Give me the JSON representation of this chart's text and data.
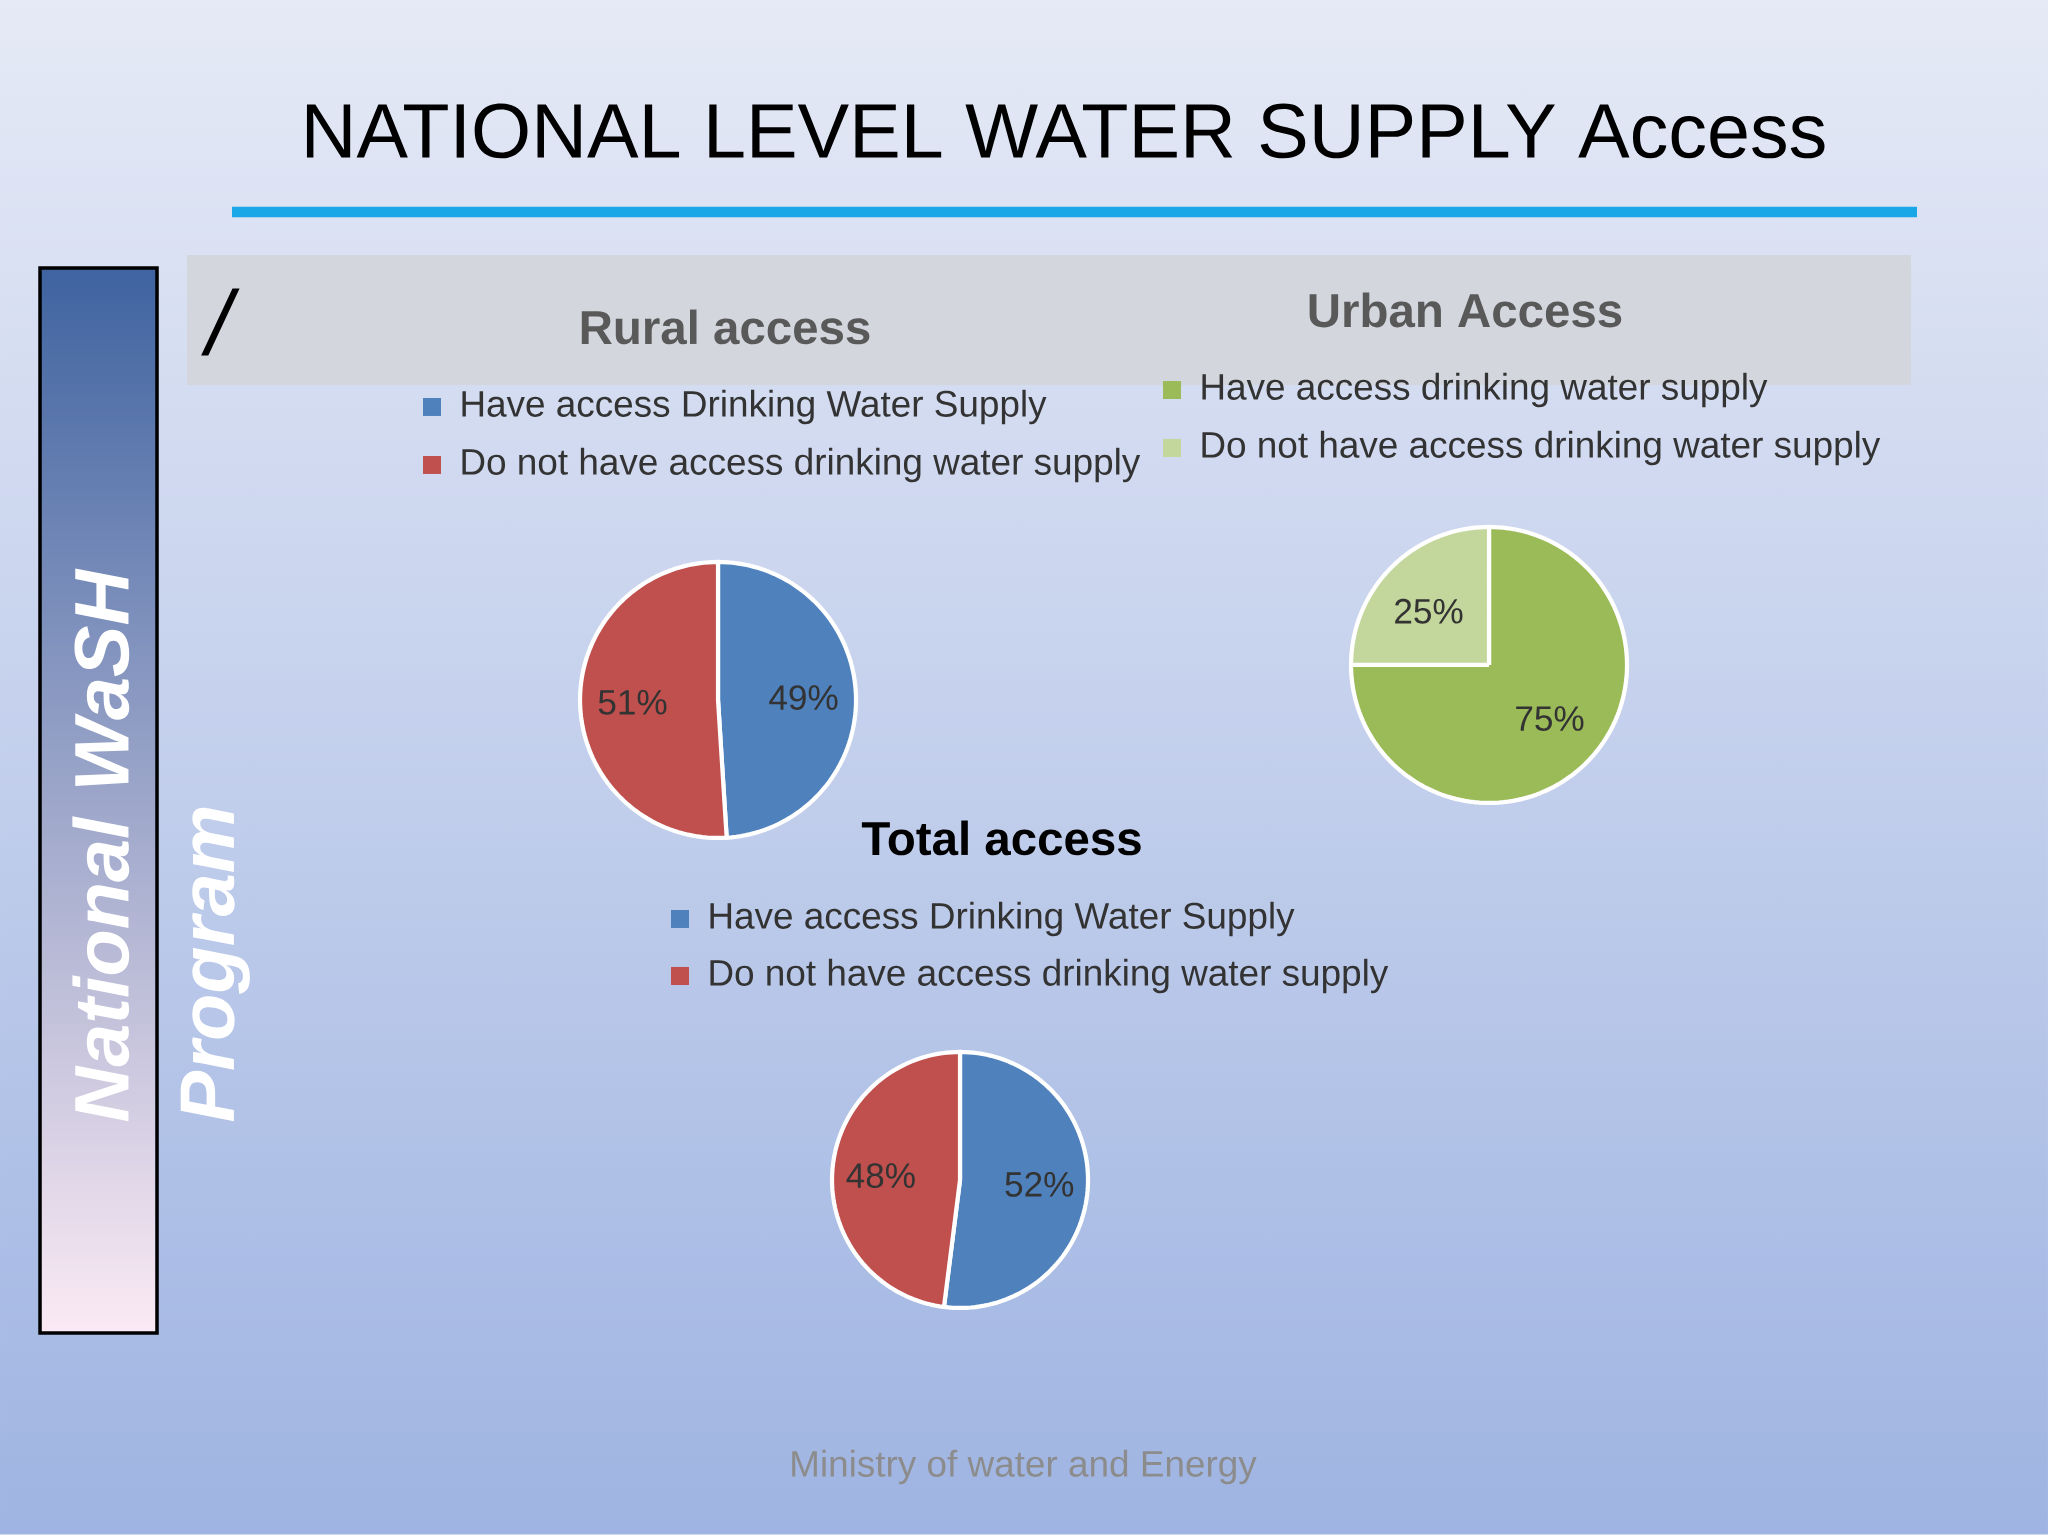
{
  "chart_data": [
    {
      "type": "other",
      "title": "NATIONAL LEVEL WATER SUPPLY Access",
      "annotations": [
        "National WaSH Program",
        "/",
        "Ministry of water and Energy"
      ]
    },
    {
      "type": "pie",
      "title": "Rural access",
      "categories": [
        "Have access Drinking Water Supply",
        "Do not have access drinking water supply"
      ],
      "values": [
        49,
        51
      ],
      "colors": [
        "#4f81bd",
        "#c0504d"
      ],
      "value_labels": [
        "49%",
        "51%"
      ],
      "legend": "top"
    },
    {
      "type": "pie",
      "title": "Urban Access",
      "categories": [
        "Have access drinking water supply",
        "Do not have access drinking water supply"
      ],
      "values": [
        75,
        25
      ],
      "colors": [
        "#9bbb59",
        "#c3d69b"
      ],
      "value_labels": [
        "75%",
        "25%"
      ],
      "legend": "top"
    },
    {
      "type": "pie",
      "title": "Total access",
      "categories": [
        "Have access Drinking Water Supply",
        "Do not have access drinking water supply"
      ],
      "values": [
        52,
        48
      ],
      "colors": [
        "#4f81bd",
        "#c0504d"
      ],
      "value_labels": [
        "52%",
        "48%"
      ],
      "legend": "top"
    }
  ]
}
